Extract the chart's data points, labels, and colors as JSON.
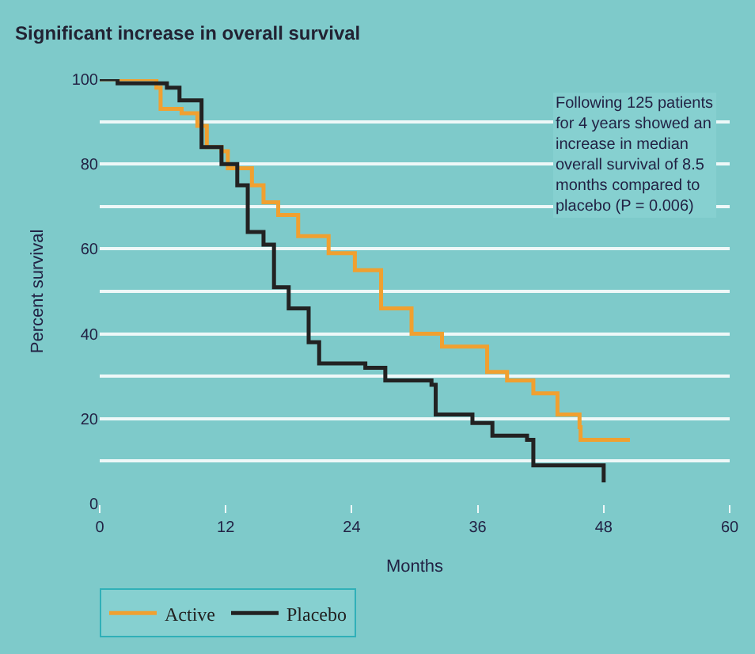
{
  "chart_data": {
    "type": "step",
    "title": "Significant increase in overall survival",
    "xlabel": "Months",
    "ylabel": "Percent survival",
    "annotations": [
      "Following 125 patients for 4 years showed an increase in median overall survival of 8.5 months compared to placebo (P = 0.006)"
    ],
    "series": [
      {
        "name": "Active",
        "color": "#f0a030",
        "x": [
          0,
          5.4,
          5.8,
          7.8,
          9.3,
          10.2,
          11.6,
          12.2,
          14.5,
          15.6,
          17,
          18.9,
          21.8,
          24.3,
          26.8,
          29.7,
          32.6,
          36.9,
          38.8,
          41.3,
          43.6,
          45.7,
          45.8,
          50.5
        ],
        "values": [
          100,
          98,
          93,
          92,
          89,
          84,
          83,
          79,
          75,
          71,
          68,
          63,
          59,
          55,
          46,
          40,
          37,
          31,
          29,
          26,
          21,
          18,
          15,
          15
        ]
      },
      {
        "name": "Placebo",
        "color": "#222222",
        "x": [
          0,
          1.7,
          6.4,
          7.6,
          9.7,
          11.6,
          13.1,
          14.1,
          15.6,
          16.6,
          18,
          19.9,
          20.9,
          25.3,
          27.2,
          31.6,
          32,
          35.5,
          37.4,
          40.7,
          41.3,
          48,
          48
        ],
        "values": [
          100,
          99,
          98,
          95,
          84,
          80,
          75,
          64,
          61,
          51,
          46,
          38,
          33,
          32,
          29,
          28,
          21,
          19,
          16,
          15,
          9,
          9,
          5
        ]
      }
    ],
    "xlim": [
      0,
      60
    ],
    "xticks": [
      0,
      12,
      24,
      36,
      48,
      60
    ],
    "ylim": [
      0,
      100
    ],
    "yticks": [
      0,
      {
        "value": 10,
        "label": null
      },
      20,
      {
        "value": 30,
        "label": null
      },
      40,
      {
        "value": 50,
        "label": null
      },
      60,
      {
        "value": 70,
        "label": null
      },
      80,
      {
        "value": 90,
        "label": null
      },
      100
    ],
    "grid": "y",
    "legend": "bottom left"
  }
}
